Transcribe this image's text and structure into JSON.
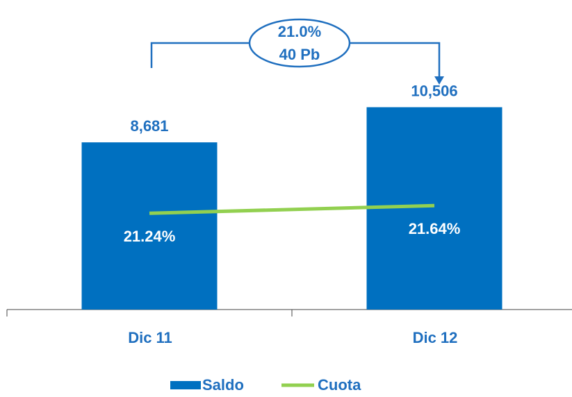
{
  "chart_data": {
    "type": "bar",
    "categories": [
      "Dic 11",
      "Dic 12"
    ],
    "series": [
      {
        "name": "Saldo",
        "type": "bar",
        "color": "#0070c0",
        "values": [
          8681,
          10506
        ],
        "value_labels": [
          "8,681",
          "10,506"
        ]
      },
      {
        "name": "Cuota",
        "type": "line",
        "axis": "y2",
        "color": "#92d050",
        "values": [
          21.24,
          21.64
        ],
        "value_labels": [
          "21.24%",
          "21.64%"
        ]
      }
    ],
    "ylim": [
      0,
      12000
    ],
    "y2lim": [
      16.2,
      28.3
    ],
    "annotation": {
      "lines": [
        "21.0%",
        "40 Pb"
      ]
    },
    "legend": "bottom"
  }
}
